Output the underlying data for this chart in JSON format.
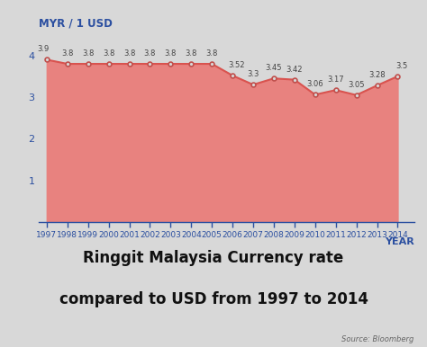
{
  "years": [
    1997,
    1998,
    1999,
    2000,
    2001,
    2002,
    2003,
    2004,
    2005,
    2006,
    2007,
    2008,
    2009,
    2010,
    2011,
    2012,
    2013,
    2014
  ],
  "values": [
    3.9,
    3.8,
    3.8,
    3.8,
    3.8,
    3.8,
    3.8,
    3.8,
    3.8,
    3.52,
    3.3,
    3.45,
    3.42,
    3.06,
    3.17,
    3.05,
    3.28,
    3.5
  ],
  "line_color": "#d9534f",
  "fill_color": "#e8827f",
  "marker_color": "#c0504d",
  "bg_color": "#d8d8d8",
  "plot_bg_color": "#d8d8d8",
  "ylabel": "MYR / 1 USD",
  "xlabel": "YEAR",
  "title_line1": "Ringgit Malaysia Currency rate",
  "title_line2": "compared to USD from 1997 to 2014",
  "source": "Source: Bloomberg",
  "ylim": [
    0,
    4.5
  ],
  "yticks": [
    1,
    2,
    3,
    4
  ],
  "title_fontsize": 12,
  "axis_label_color": "#2b4fa0",
  "tick_color": "#2b4fa0",
  "tick_label_color": "#2b4fa0",
  "source_color": "#666666",
  "title_color": "#111111",
  "annotation_color": "#444444"
}
